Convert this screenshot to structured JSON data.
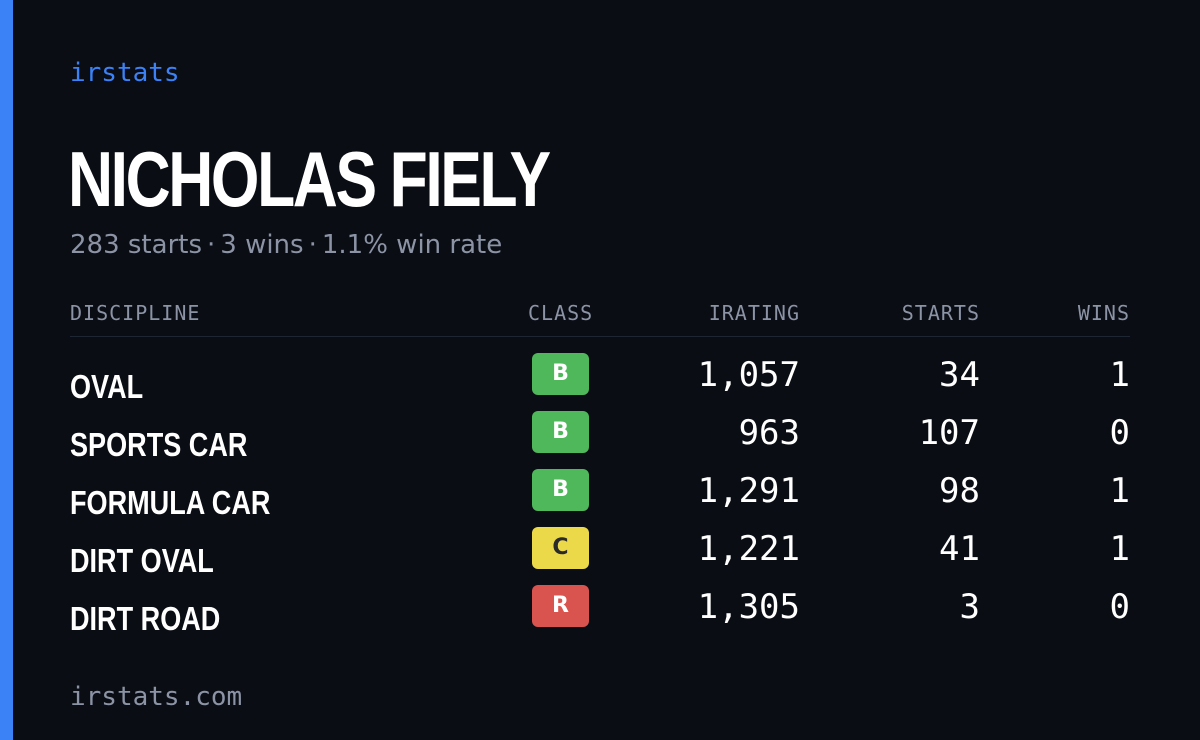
{
  "brand": "irstats",
  "player": {
    "name": "NICHOLAS FIELY",
    "starts": "283 starts",
    "wins": "3 wins",
    "win_rate": "1.1% win rate",
    "separator": "·"
  },
  "table": {
    "headers": {
      "discipline": "DISCIPLINE",
      "class": "CLASS",
      "irating": "IRATING",
      "starts": "STARTS",
      "wins": "WINS"
    },
    "rows": [
      {
        "discipline": "OVAL",
        "class": "B",
        "class_color": "#4fb85a",
        "class_text_color": "#ffffff",
        "irating": "1,057",
        "starts": "34",
        "wins": "1"
      },
      {
        "discipline": "SPORTS CAR",
        "class": "B",
        "class_color": "#4fb85a",
        "class_text_color": "#ffffff",
        "irating": "963",
        "starts": "107",
        "wins": "0"
      },
      {
        "discipline": "FORMULA CAR",
        "class": "B",
        "class_color": "#4fb85a",
        "class_text_color": "#ffffff",
        "irating": "1,291",
        "starts": "98",
        "wins": "1"
      },
      {
        "discipline": "DIRT OVAL",
        "class": "C",
        "class_color": "#ecd94a",
        "class_text_color": "#2a2a2a",
        "irating": "1,221",
        "starts": "41",
        "wins": "1"
      },
      {
        "discipline": "DIRT ROAD",
        "class": "R",
        "class_color": "#d9534f",
        "class_text_color": "#ffffff",
        "irating": "1,305",
        "starts": "3",
        "wins": "0"
      }
    ]
  },
  "footer": "irstats.com",
  "colors": {
    "background": "#0a0d14",
    "accent": "#3b82f6",
    "muted": "#8b93a5"
  }
}
